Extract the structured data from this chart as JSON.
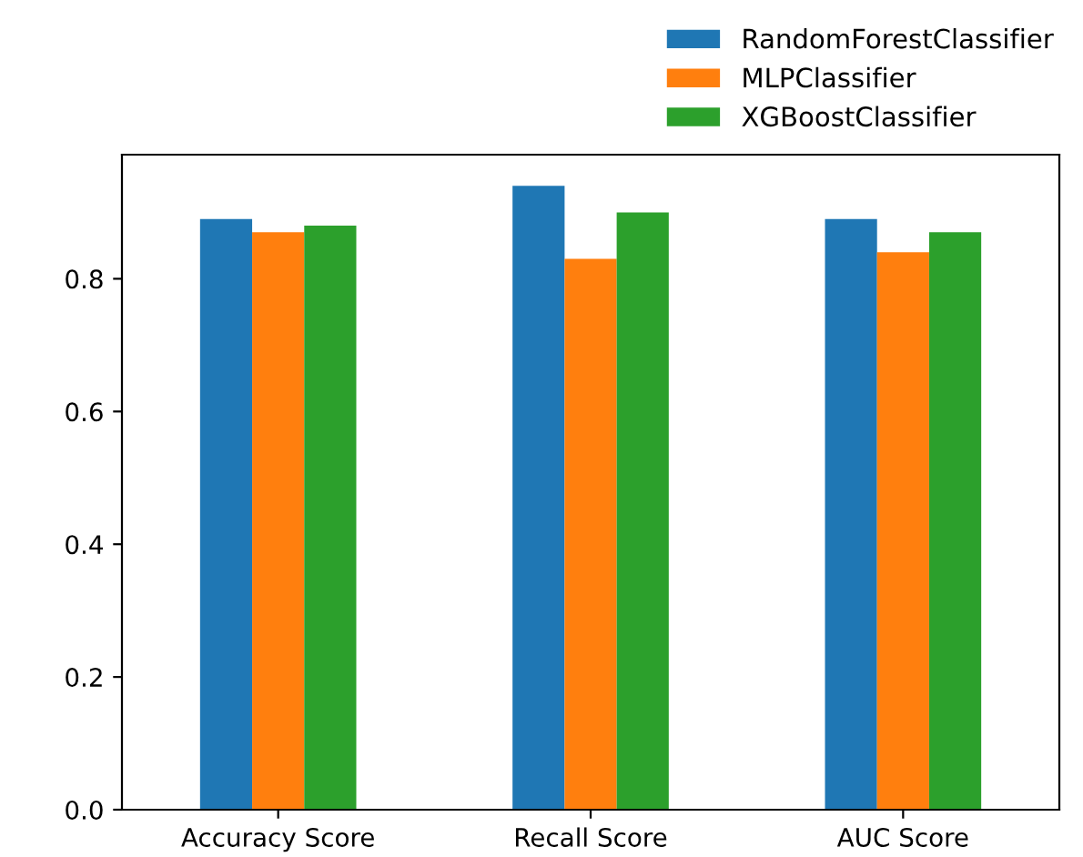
{
  "chart_data": {
    "type": "bar",
    "categories": [
      "Accuracy Score",
      "Recall Score",
      "AUC Score"
    ],
    "series": [
      {
        "name": "RandomForestClassifier",
        "color": "#1f77b4",
        "values": [
          0.89,
          0.94,
          0.89
        ]
      },
      {
        "name": "MLPClassifier",
        "color": "#ff7f0e",
        "values": [
          0.87,
          0.83,
          0.84
        ]
      },
      {
        "name": "XGBoostClassifier",
        "color": "#2ca02c",
        "values": [
          0.88,
          0.9,
          0.87
        ]
      }
    ],
    "ylim": [
      0,
      0.987
    ],
    "yticks": [
      {
        "value": 0,
        "label": "0.0"
      },
      0.2,
      0.4,
      0.6,
      0.8
    ],
    "grid": false,
    "legend": "top right"
  }
}
